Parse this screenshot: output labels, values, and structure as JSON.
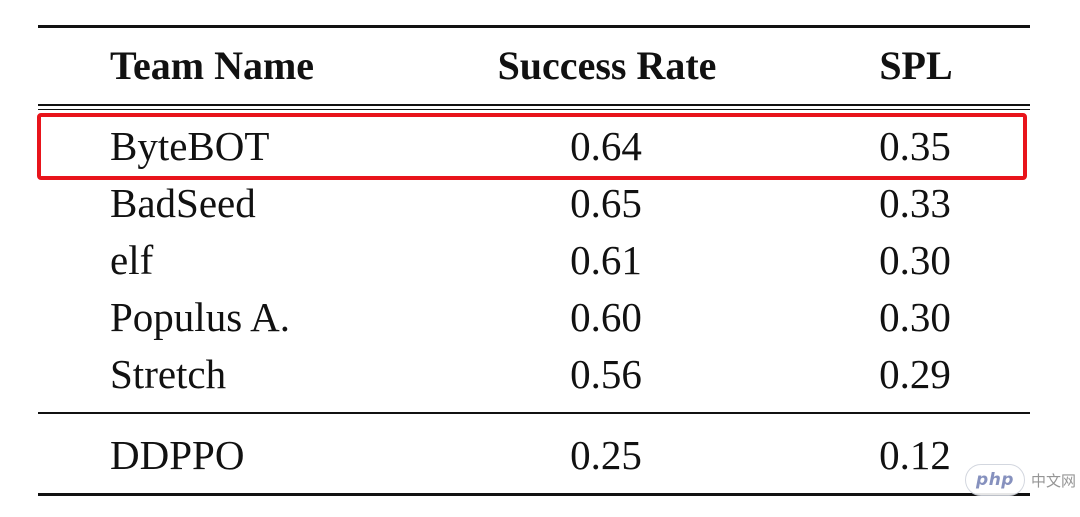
{
  "chart_data": {
    "type": "table",
    "columns": [
      "Team Name",
      "Success Rate",
      "SPL"
    ],
    "rows": [
      {
        "team": "ByteBOT",
        "success_rate": "0.64",
        "spl": "0.35",
        "highlighted": true
      },
      {
        "team": "BadSeed",
        "success_rate": "0.65",
        "spl": "0.33"
      },
      {
        "team": "elf",
        "success_rate": "0.61",
        "spl": "0.30"
      },
      {
        "team": "Populus A.",
        "success_rate": "0.60",
        "spl": "0.30"
      },
      {
        "team": "Stretch",
        "success_rate": "0.56",
        "spl": "0.29"
      }
    ],
    "baseline": {
      "team": "DDPPO",
      "success_rate": "0.25",
      "spl": "0.12"
    },
    "highlight_color": "#e8141b"
  },
  "watermark": {
    "logo": "php",
    "text": "中文网"
  }
}
